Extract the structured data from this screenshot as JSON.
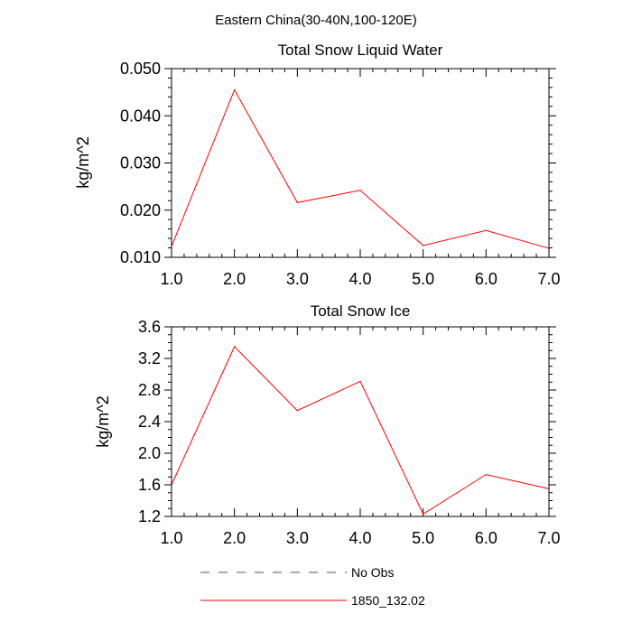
{
  "page_title": "Eastern China(30-40N,100-120E)",
  "colors": {
    "series": "#ff0000",
    "no_obs": "#4a4a9a",
    "axis": "#000000"
  },
  "legend": [
    {
      "label": "No Obs",
      "style": "dashed",
      "color": "#4a4a9a"
    },
    {
      "label": "1850_132.02",
      "style": "solid",
      "color": "#ff0000"
    }
  ],
  "chart_data": [
    {
      "type": "line",
      "title": "Total Snow Liquid Water",
      "ylabel": "kg/m^2",
      "xlim": [
        1.0,
        7.0
      ],
      "ylim": [
        0.01,
        0.05
      ],
      "xticks": [
        "1.0",
        "2.0",
        "3.0",
        "4.0",
        "5.0",
        "6.0",
        "7.0"
      ],
      "yticks": [
        "0.010",
        "0.020",
        "0.030",
        "0.040",
        "0.050"
      ],
      "x": [
        1,
        2,
        3,
        4,
        5,
        6,
        7
      ],
      "series": [
        {
          "name": "1850_132.02",
          "values": [
            0.0123,
            0.0455,
            0.0216,
            0.0242,
            0.0125,
            0.0157,
            0.0119
          ]
        }
      ]
    },
    {
      "type": "line",
      "title": "Total Snow Ice",
      "ylabel": "kg/m^2",
      "xlim": [
        1.0,
        7.0
      ],
      "ylim": [
        1.2,
        3.6
      ],
      "xticks": [
        "1.0",
        "2.0",
        "3.0",
        "4.0",
        "5.0",
        "6.0",
        "7.0"
      ],
      "yticks": [
        "1.2",
        "1.6",
        "2.0",
        "2.4",
        "2.8",
        "3.2",
        "3.6"
      ],
      "x": [
        1,
        2,
        3,
        4,
        5,
        6,
        7
      ],
      "series": [
        {
          "name": "1850_132.02",
          "values": [
            1.6,
            3.35,
            2.54,
            2.91,
            1.23,
            1.73,
            1.55
          ]
        }
      ]
    }
  ]
}
